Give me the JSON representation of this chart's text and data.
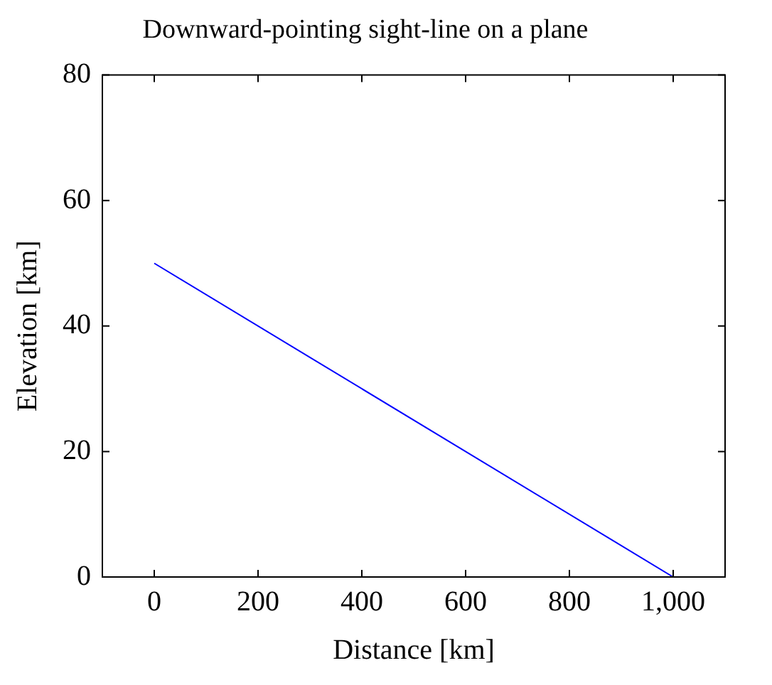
{
  "chart_data": {
    "type": "line",
    "title": "Downward-pointing sight-line on a plane",
    "xlabel": "Distance [km]",
    "ylabel": "Elevation [km]",
    "x": [
      0,
      1000
    ],
    "series": [
      {
        "color": "#0000ff",
        "values": [
          50,
          0
        ]
      }
    ],
    "xlim": [
      -100,
      1100
    ],
    "xticks": [
      0,
      200,
      400,
      600,
      800,
      {
        "value": 1000,
        "label": "1,000"
      }
    ],
    "ylim": [
      0,
      80
    ],
    "yticks": [
      0,
      20,
      40,
      60,
      80
    ],
    "marker": "none",
    "line_style": "solid",
    "legend": false
  }
}
